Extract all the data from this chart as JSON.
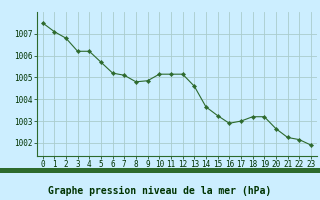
{
  "x": [
    0,
    1,
    2,
    3,
    4,
    5,
    6,
    7,
    8,
    9,
    10,
    11,
    12,
    13,
    14,
    15,
    16,
    17,
    18,
    19,
    20,
    21,
    22,
    23
  ],
  "y": [
    1007.5,
    1007.1,
    1006.8,
    1006.2,
    1006.2,
    1005.7,
    1005.2,
    1005.1,
    1004.8,
    1004.85,
    1005.15,
    1005.15,
    1005.15,
    1004.6,
    1003.65,
    1003.25,
    1002.9,
    1003.0,
    1003.2,
    1003.2,
    1002.65,
    1002.25,
    1002.15,
    1001.9
  ],
  "line_color": "#2d6a2d",
  "marker": "D",
  "marker_size": 2.2,
  "bg_color": "#cceeff",
  "plot_bg_color": "#cceeff",
  "grid_color": "#aacccc",
  "bottom_bar_color": "#2d6a2d",
  "title": "Graphe pression niveau de la mer (hPa)",
  "ylim_min": 1001.4,
  "ylim_max": 1008.0,
  "xlim_min": -0.5,
  "xlim_max": 23.5,
  "yticks": [
    1002,
    1003,
    1004,
    1005,
    1006,
    1007
  ],
  "xticks": [
    0,
    1,
    2,
    3,
    4,
    5,
    6,
    7,
    8,
    9,
    10,
    11,
    12,
    13,
    14,
    15,
    16,
    17,
    18,
    19,
    20,
    21,
    22,
    23
  ],
  "tick_fontsize": 5.5,
  "title_fontsize": 7.0,
  "title_fontweight": "bold",
  "tick_color": "#003300",
  "title_color": "#003300"
}
